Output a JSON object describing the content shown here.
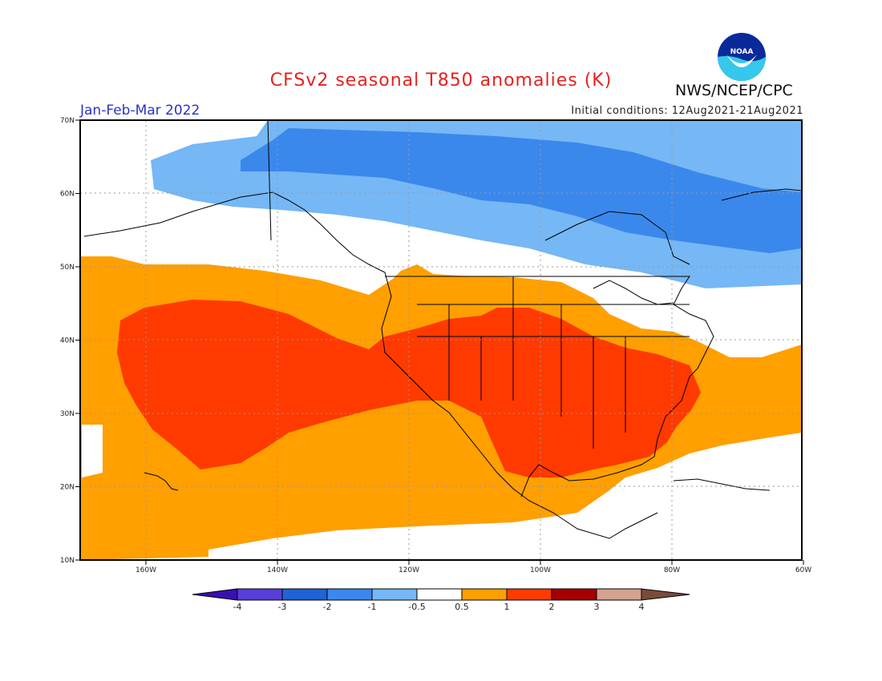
{
  "title": "CFSv2 seasonal T850 anomalies (K)",
  "period": "Jan-Feb-Mar 2022",
  "init_conditions": "Initial conditions: 12Aug2021-21Aug2021",
  "agency": "NWS/NCEP/CPC",
  "logo_text": "NOAA",
  "map": {
    "lon_range": [
      -170,
      -60
    ],
    "lat_range": [
      10,
      70
    ],
    "lon_ticks": [
      "160W",
      "140W",
      "120W",
      "100W",
      "80W",
      "60W"
    ],
    "lat_ticks": [
      "10N",
      "20N",
      "30N",
      "40N",
      "50N",
      "60N",
      "70N"
    ]
  },
  "colorbar": {
    "labels": [
      "-4",
      "-3",
      "-2",
      "-1",
      "-0.5",
      "0.5",
      "1",
      "2",
      "3",
      "4"
    ],
    "colors": [
      "#3a0fb0",
      "#5a3ed8",
      "#1f63d4",
      "#3b88ec",
      "#76b7f5",
      "#ffffff",
      "#ff9f00",
      "#ff3a00",
      "#a50000",
      "#d4a28f",
      "#7b4b3a"
    ]
  }
}
